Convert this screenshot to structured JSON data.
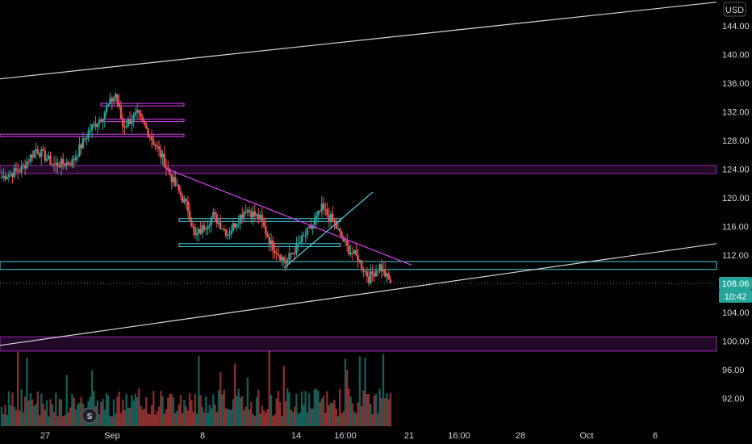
{
  "currency": "USD",
  "colors": {
    "background": "#000000",
    "up": "#26a69a",
    "down": "#ef5350",
    "zone": "#9c27b0",
    "zone_fill": "rgba(156,39,176,0.22)",
    "cyan": "#4dd0e1",
    "white_line": "#d9d9d9",
    "magenta": "#e040fb",
    "price_tag": "#26a69a",
    "axis_text": "#d1d4dc"
  },
  "price_tag": {
    "price": "108.06",
    "countdown": "10:42",
    "value": 108.06
  },
  "session_marker": "S",
  "chart_data": {
    "type": "candlestick",
    "y_axis": {
      "ticks": [
        "144.00",
        "140.00",
        "136.00",
        "132.00",
        "128.00",
        "124.00",
        "120.00",
        "116.00",
        "112.00",
        "104.00",
        "100.00",
        "96.00",
        "92.00"
      ],
      "range": [
        89.0,
        147.5
      ]
    },
    "x_axis": {
      "ticks": [
        "27",
        "Sep",
        "8",
        "14",
        "16:00",
        "21",
        "16:00",
        "28",
        "Oct",
        "6"
      ]
    },
    "horizontal_zones": [
      {
        "kind": "zone",
        "top": 124.5,
        "bottom": 123.4,
        "x_from": "start",
        "x_to": "end"
      },
      {
        "kind": "zone",
        "top": 100.6,
        "bottom": 98.6,
        "x_from": "start",
        "x_to": "end"
      },
      {
        "kind": "cyan-band",
        "top": 111.1,
        "bottom": 110.0,
        "x_from": "start",
        "x_to": "end"
      },
      {
        "kind": "cyan-rect",
        "top": 117.1,
        "bottom": 116.7,
        "x_from": "Sep 5",
        "x_to": "Sep 16"
      },
      {
        "kind": "cyan-rect",
        "top": 113.6,
        "bottom": 113.2,
        "x_from": "Sep 5",
        "x_to": "Sep 16"
      },
      {
        "kind": "magenta-level",
        "value": 133.0,
        "x_from": "Sep 1",
        "x_to": "Sep 3"
      },
      {
        "kind": "magenta-level",
        "value": 130.8,
        "x_from": "Sep 1",
        "x_to": "Sep 3"
      },
      {
        "kind": "magenta-level",
        "value": 128.7,
        "x_from": "start",
        "x_to": "Sep 3"
      }
    ],
    "trendlines": [
      {
        "kind": "white",
        "from": [
          "start",
          136.6
        ],
        "to": [
          "end",
          147.3
        ]
      },
      {
        "kind": "white",
        "from": [
          "start",
          99.4
        ],
        "to": [
          "end",
          113.6
        ]
      },
      {
        "kind": "magenta",
        "from": [
          "Sep 4",
          124.1
        ],
        "to": [
          "Sep 20",
          110.6
        ]
      },
      {
        "kind": "cyan",
        "from": [
          "Sep 12",
          110.2
        ],
        "to": [
          "Sep 18",
          120.8
        ]
      }
    ],
    "price_segments": [
      {
        "from": 122.8,
        "to": 124.0,
        "n": 12
      },
      {
        "from": 124.0,
        "to": 126.8,
        "n": 8
      },
      {
        "from": 126.8,
        "to": 124.6,
        "n": 10
      },
      {
        "from": 124.6,
        "to": 125.0,
        "n": 10
      },
      {
        "from": 125.0,
        "to": 129.6,
        "n": 10
      },
      {
        "from": 129.6,
        "to": 131.2,
        "n": 6
      },
      {
        "from": 131.2,
        "to": 134.5,
        "n": 8
      },
      {
        "from": 134.5,
        "to": 130.0,
        "n": 4
      },
      {
        "from": 130.0,
        "to": 131.6,
        "n": 8
      },
      {
        "from": 131.6,
        "to": 129.2,
        "n": 6
      },
      {
        "from": 129.2,
        "to": 125.5,
        "n": 8
      },
      {
        "from": 125.5,
        "to": 122.2,
        "n": 6
      },
      {
        "from": 122.2,
        "to": 118.5,
        "n": 8
      },
      {
        "from": 118.5,
        "to": 114.5,
        "n": 4
      },
      {
        "from": 114.5,
        "to": 117.5,
        "n": 10
      },
      {
        "from": 117.5,
        "to": 115.0,
        "n": 8
      },
      {
        "from": 115.0,
        "to": 118.5,
        "n": 10
      },
      {
        "from": 118.5,
        "to": 117.0,
        "n": 8
      },
      {
        "from": 117.0,
        "to": 113.5,
        "n": 6
      },
      {
        "from": 113.5,
        "to": 111.0,
        "n": 8
      },
      {
        "from": 111.0,
        "to": 114.5,
        "n": 10
      },
      {
        "from": 114.5,
        "to": 115.8,
        "n": 4
      },
      {
        "from": 115.8,
        "to": 118.5,
        "n": 6
      },
      {
        "from": 118.5,
        "to": 116.8,
        "n": 6
      },
      {
        "from": 116.8,
        "to": 113.0,
        "n": 8
      },
      {
        "from": 113.0,
        "to": 111.5,
        "n": 6
      },
      {
        "from": 111.5,
        "to": 108.8,
        "n": 6
      },
      {
        "from": 108.8,
        "to": 110.5,
        "n": 6
      },
      {
        "from": 110.5,
        "to": 108.06,
        "n": 6
      }
    ]
  }
}
